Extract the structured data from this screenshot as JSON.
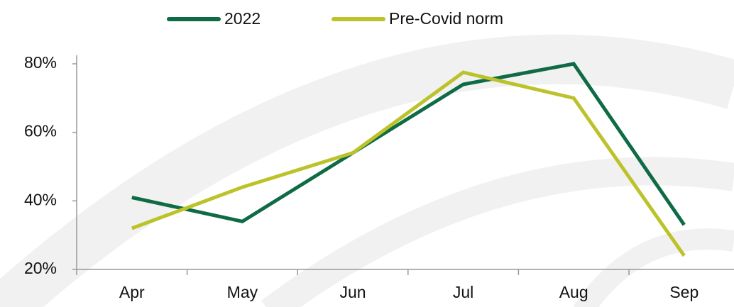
{
  "chart_data": {
    "type": "line",
    "categories": [
      "Apr",
      "May",
      "Jun",
      "Jul",
      "Aug",
      "Sep"
    ],
    "series": [
      {
        "name": "2022",
        "color": "#0e6b45",
        "values": [
          41,
          34,
          54,
          74,
          80,
          33
        ]
      },
      {
        "name": "Pre-Covid norm",
        "color": "#bcc32a",
        "values": [
          32,
          44,
          54,
          77.5,
          70,
          24
        ]
      }
    ],
    "ylim": [
      20,
      80
    ],
    "yticks": [
      {
        "value": 20,
        "label": "20%"
      },
      {
        "value": 40,
        "label": "40%"
      },
      {
        "value": 60,
        "label": "60%"
      },
      {
        "value": 80,
        "label": "80%"
      }
    ],
    "legend": "top"
  }
}
